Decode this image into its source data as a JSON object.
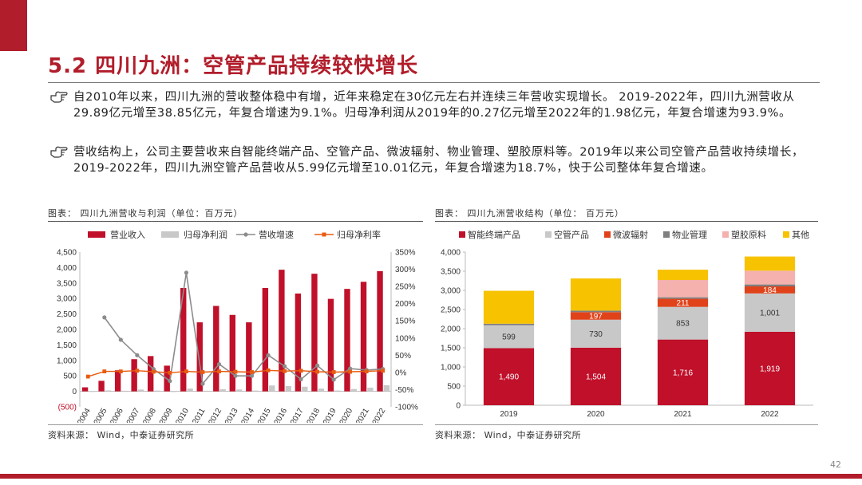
{
  "header": {
    "title": "5.2 四川九洲：空管产品持续较快增长"
  },
  "bullets": [
    "自2010年以来，四川九洲的营收整体稳中有增，近年来稳定在30亿元左右并连续三年营收实现增长。 2019-2022年，四川九洲营收从29.89亿元增至38.85亿元，年复合增速为9.1%。归母净利润从2019年的0.27亿元增至2022年的1.98亿元，年复合增速为93.9%。",
    "营收结构上，公司主要营收来自智能终端产品、空管产品、微波辐射、物业管理、塑胶原料等。2019年以来公司空管产品营收持续增长，2019-2022年，四川九洲空管产品营收从5.99亿元增至10.01亿元，年复合增速为18.7%，快于公司整体年复合增速。"
  ],
  "left_chart": {
    "caption": "图表：  四川九洲营收与利润（单位：百万元）",
    "source": "资料来源：   Wind，中泰证券研究所"
  },
  "right_chart": {
    "caption": "图表：  四川九洲营收结构（单位：  百万元）",
    "source": "资料来源：   Wind，中泰证券研究所"
  },
  "page_number": "42",
  "colors": {
    "brand": "#b11d2b",
    "bar_red": "#c0102a",
    "bar_gray": "#c8c8c8",
    "line_gray": "#8c8c8c",
    "line_orange": "#e85b10",
    "yellow": "#f7c200",
    "pink": "#f4b1ad",
    "darkgray": "#7f7f7f",
    "orange_red": "#e0431a"
  },
  "chart_data": [
    {
      "type": "bar",
      "categories": [
        "2004",
        "2005",
        "2006",
        "2007",
        "2008",
        "2009",
        "2010",
        "2011",
        "2012",
        "2013",
        "2014",
        "2015",
        "2016",
        "2017",
        "2018",
        "2019",
        "2020",
        "2021",
        "2022"
      ],
      "series": [
        {
          "name": "营业收入",
          "kind": "bar",
          "axis": "left",
          "color": "#c0102a",
          "values": [
            130,
            340,
            680,
            1040,
            1140,
            830,
            3340,
            2230,
            2760,
            2470,
            2230,
            3340,
            3930,
            3160,
            3800,
            2989,
            3310,
            3540,
            3885
          ]
        },
        {
          "name": "归母净利润",
          "kind": "bar",
          "axis": "left",
          "color": "#c8c8c8",
          "values": [
            5,
            30,
            20,
            60,
            25,
            -10,
            90,
            20,
            70,
            60,
            25,
            190,
            170,
            150,
            90,
            27,
            75,
            120,
            198
          ]
        },
        {
          "name": "营收增速",
          "kind": "line",
          "axis": "right",
          "color": "#8c8c8c",
          "values": [
            null,
            160,
            95,
            50,
            10,
            -25,
            290,
            -33,
            24,
            -10,
            -10,
            50,
            18,
            -20,
            20,
            -21,
            11,
            7,
            10
          ]
        },
        {
          "name": "归母净利率",
          "kind": "line",
          "axis": "right",
          "color": "#e85b10",
          "values": [
            -12,
            3,
            3,
            5,
            2,
            -1,
            3,
            1,
            3,
            2,
            1,
            6,
            4,
            5,
            2,
            1,
            2,
            3,
            5
          ]
        }
      ],
      "y_left": {
        "ylim": [
          -500,
          4500
        ],
        "ticks": [
          -500,
          0,
          500,
          1000,
          1500,
          2000,
          2500,
          3000,
          3500,
          4000,
          4500
        ],
        "tick_labels": [
          "(500)",
          "0",
          "500",
          "1,000",
          "1,500",
          "2,000",
          "2,500",
          "3,000",
          "3,500",
          "4,000",
          "4,500"
        ]
      },
      "y_right": {
        "ylim": [
          -100,
          350
        ],
        "ticks": [
          -100,
          -50,
          0,
          50,
          100,
          150,
          200,
          250,
          300,
          350
        ],
        "tick_labels": [
          "-100%",
          "-50%",
          "0%",
          "50%",
          "100%",
          "150%",
          "200%",
          "250%",
          "300%",
          "350%"
        ]
      },
      "legend": "top",
      "grid": false
    },
    {
      "type": "bar",
      "stacked": true,
      "categories": [
        "2019",
        "2020",
        "2021",
        "2022"
      ],
      "series": [
        {
          "name": "智能终端产品",
          "color": "#c0102a",
          "values": [
            1490,
            1504,
            1716,
            1919
          ],
          "labels": [
            "1,490",
            "1,504",
            "1,716",
            "1,919"
          ]
        },
        {
          "name": "空管产品",
          "color": "#c8c8c8",
          "values": [
            599,
            730,
            853,
            1001
          ],
          "labels": [
            "599",
            "730",
            "853",
            "1,001"
          ]
        },
        {
          "name": "微波辐射",
          "color": "#e0431a",
          "values": [
            0,
            197,
            211,
            184
          ],
          "labels": [
            "",
            "197",
            "211",
            "184"
          ]
        },
        {
          "name": "物业管理",
          "color": "#7f7f7f",
          "values": [
            40,
            40,
            40,
            50
          ],
          "labels": [
            "",
            "",
            "",
            ""
          ]
        },
        {
          "name": "塑胶原料",
          "color": "#f4b1ad",
          "values": [
            0,
            0,
            450,
            360
          ],
          "labels": [
            "",
            "",
            "",
            ""
          ]
        },
        {
          "name": "其他",
          "color": "#f7c200",
          "values": [
            860,
            840,
            270,
            370
          ],
          "labels": [
            "",
            "",
            "",
            ""
          ]
        }
      ],
      "y": {
        "ylim": [
          0,
          4000
        ],
        "ticks": [
          0,
          500,
          1000,
          1500,
          2000,
          2500,
          3000,
          3500,
          4000
        ],
        "tick_labels": [
          "0",
          "500",
          "1,000",
          "1,500",
          "2,000",
          "2,500",
          "3,000",
          "3,500",
          "4,000"
        ]
      },
      "legend": "top",
      "grid": false
    }
  ]
}
